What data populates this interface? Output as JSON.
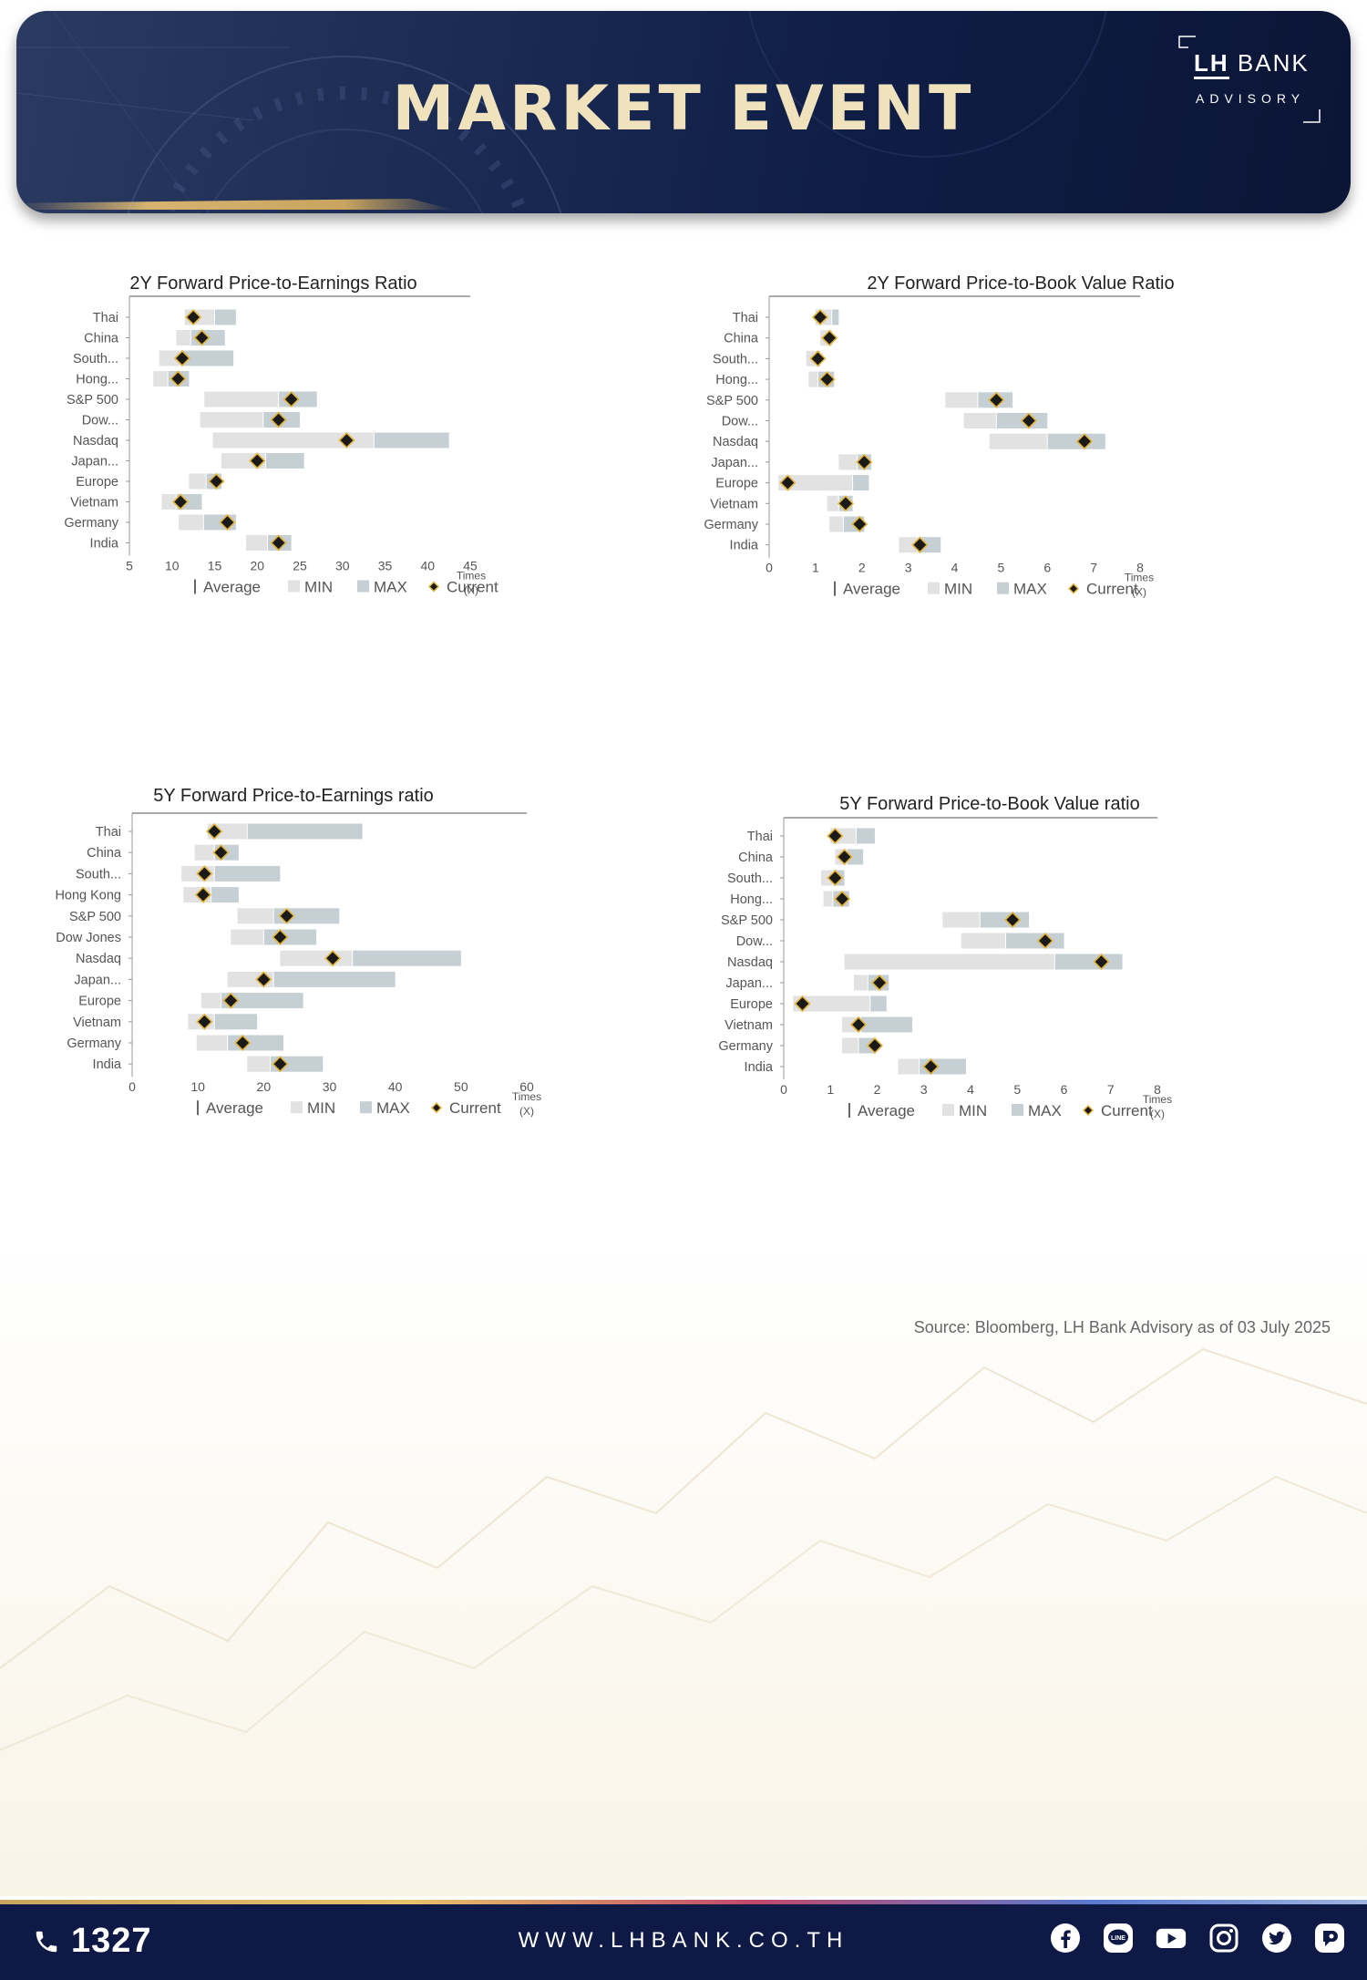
{
  "header": {
    "title": "MARKET EVENT",
    "logo_text": "BANK",
    "logo_mark": "LH",
    "logo_sub": "ADVISORY"
  },
  "legend_labels": [
    "Average",
    "MIN",
    "MAX",
    "Current"
  ],
  "chart_data": [
    {
      "type": "bar",
      "title": "2Y Forward Price-to-Earnings Ratio",
      "categories": [
        "Thai",
        "China",
        "South...",
        "Hong...",
        "S&P 500",
        "Dow...",
        "Nasdaq",
        "Japan...",
        "Europe",
        "Vietnam",
        "Germany",
        "India"
      ],
      "min": [
        11.5,
        10.5,
        8.5,
        7.8,
        13.8,
        13.3,
        14.8,
        15.8,
        12.0,
        8.8,
        10.8,
        18.7
      ],
      "avg": [
        15.0,
        12.2,
        11.0,
        9.5,
        22.5,
        20.7,
        33.7,
        21.0,
        14.0,
        10.5,
        13.7,
        21.2
      ],
      "max": [
        17.5,
        16.2,
        17.2,
        12.0,
        27.0,
        25.0,
        42.5,
        25.5,
        15.8,
        13.5,
        17.5,
        24.0
      ],
      "current": [
        12.5,
        13.5,
        11.2,
        10.7,
        24.0,
        22.5,
        30.5,
        20.0,
        15.2,
        11.0,
        16.5,
        22.5
      ],
      "xlim": [
        5,
        45
      ],
      "xticks": [
        "5",
        "10",
        "15",
        "20",
        "25",
        "30",
        "35",
        "40",
        "45"
      ],
      "xlabel": [
        "Times",
        "(X)"
      ],
      "legend": "bottom"
    },
    {
      "type": "bar",
      "title": "2Y Forward Price-to-Book Value Ratio",
      "categories": [
        "Thai",
        "China",
        "South...",
        "Hong...",
        "S&P 500",
        "Dow...",
        "Nasdaq",
        "Japan...",
        "Europe",
        "Vietnam",
        "Germany",
        "India"
      ],
      "min": [
        1.0,
        1.1,
        0.8,
        0.85,
        3.8,
        4.2,
        4.75,
        1.5,
        0.2,
        1.25,
        1.3,
        2.8
      ],
      "avg": [
        1.35,
        1.3,
        1.0,
        1.05,
        4.5,
        4.9,
        6.0,
        1.9,
        1.8,
        1.5,
        1.6,
        3.2
      ],
      "max": [
        1.5,
        1.35,
        1.1,
        1.4,
        5.25,
        6.0,
        7.25,
        2.2,
        2.15,
        1.8,
        2.05,
        3.7
      ],
      "current": [
        1.1,
        1.3,
        1.05,
        1.25,
        4.9,
        5.6,
        6.8,
        2.05,
        0.4,
        1.65,
        1.95,
        3.25
      ],
      "xlim": [
        0,
        8
      ],
      "xticks": [
        "0",
        "1",
        "2",
        "3",
        "4",
        "5",
        "6",
        "7",
        "8"
      ],
      "xlabel": [
        "Times",
        "(X)"
      ],
      "legend": "bottom"
    },
    {
      "type": "bar",
      "title": "5Y Forward Price-to-Earnings ratio",
      "categories": [
        "Thai",
        "China",
        "South...",
        "Hong Kong",
        "S&P 500",
        "Dow Jones",
        "Nasdaq",
        "Japan...",
        "Europe",
        "Vietnam",
        "Germany",
        "India"
      ],
      "min": [
        11.5,
        9.5,
        7.5,
        7.8,
        16.0,
        15.0,
        22.5,
        14.5,
        10.5,
        8.5,
        9.8,
        17.5
      ],
      "avg": [
        17.5,
        12.5,
        12.5,
        12.0,
        21.5,
        20.0,
        33.5,
        21.5,
        13.5,
        12.5,
        14.5,
        21.0
      ],
      "max": [
        35.0,
        16.2,
        22.5,
        16.2,
        31.5,
        28.0,
        50.0,
        40.0,
        26.0,
        19.0,
        23.0,
        29.0
      ],
      "current": [
        12.5,
        13.5,
        11.0,
        10.8,
        23.5,
        22.5,
        30.5,
        20.0,
        15.0,
        11.0,
        16.8,
        22.5
      ],
      "xlim": [
        0,
        60
      ],
      "xticks": [
        "0",
        "10",
        "20",
        "30",
        "40",
        "50",
        "60"
      ],
      "xlabel": [
        "Times",
        "(X)"
      ],
      "legend": "bottom"
    },
    {
      "type": "bar",
      "title": "5Y Forward Price-to-Book Value ratio",
      "categories": [
        "Thai",
        "China",
        "South...",
        "Hong...",
        "S&P 500",
        "Dow...",
        "Nasdaq",
        "Japan...",
        "Europe",
        "Vietnam",
        "Germany",
        "India"
      ],
      "min": [
        1.0,
        1.1,
        0.8,
        0.85,
        3.4,
        3.8,
        1.3,
        1.5,
        0.2,
        1.25,
        1.25,
        2.45
      ],
      "avg": [
        1.55,
        1.35,
        1.05,
        1.05,
        4.2,
        4.75,
        5.8,
        1.8,
        1.85,
        1.65,
        1.6,
        2.9
      ],
      "max": [
        1.95,
        1.7,
        1.3,
        1.4,
        5.25,
        6.0,
        7.25,
        2.25,
        2.2,
        2.75,
        1.95,
        3.9
      ],
      "current": [
        1.1,
        1.3,
        1.1,
        1.25,
        4.9,
        5.6,
        6.8,
        2.05,
        0.4,
        1.6,
        1.95,
        3.15
      ],
      "xlim": [
        0,
        8
      ],
      "xticks": [
        "0",
        "1",
        "2",
        "3",
        "4",
        "5",
        "6",
        "7",
        "8"
      ],
      "xlabel": [
        "Times",
        "(X)"
      ],
      "legend": "bottom"
    }
  ],
  "source": "Source: Bloomberg,  LH Bank Advisory  as of 03 July 2025",
  "footer": {
    "phone": "1327",
    "website": "WWW.LHBANK.CO.TH",
    "socials": [
      "facebook-icon",
      "line-icon",
      "youtube-icon",
      "instagram-icon",
      "twitter-icon",
      "blockdit-icon"
    ]
  },
  "colors": {
    "navy": "#0e1a45",
    "gold": "#d6b470",
    "min_bar": "#e2e2e2",
    "max_bar": "#c6cfd4",
    "marker_fill": "#1a1a1a",
    "marker_stroke": "#e2b43c"
  }
}
